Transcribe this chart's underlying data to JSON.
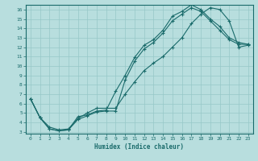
{
  "xlabel": "Humidex (Indice chaleur)",
  "xlim": [
    0,
    23
  ],
  "ylim": [
    3,
    16
  ],
  "xticks": [
    0,
    1,
    2,
    3,
    4,
    5,
    6,
    7,
    8,
    9,
    10,
    11,
    12,
    13,
    14,
    15,
    16,
    17,
    18,
    19,
    20,
    21,
    22,
    23
  ],
  "yticks": [
    3,
    4,
    5,
    6,
    7,
    8,
    9,
    10,
    11,
    12,
    13,
    14,
    15,
    16
  ],
  "bg_color": "#b8dede",
  "grid_color": "#96c8c8",
  "line_color": "#1a6b6b",
  "line1_x": [
    0,
    1,
    2,
    3,
    4,
    5,
    6,
    7,
    8,
    9,
    10,
    11,
    12,
    13,
    14,
    15,
    16,
    17,
    18,
    19,
    20,
    21,
    22,
    23
  ],
  "line1_y": [
    6.5,
    4.5,
    3.3,
    3.1,
    3.2,
    4.6,
    4.8,
    5.2,
    5.3,
    7.3,
    9.0,
    10.9,
    12.2,
    12.8,
    13.8,
    15.3,
    15.8,
    16.5,
    16.0,
    15.0,
    14.2,
    13.0,
    12.5,
    12.3
  ],
  "line2_x": [
    0,
    1,
    2,
    3,
    4,
    5,
    6,
    7,
    8,
    9,
    10,
    11,
    12,
    13,
    14,
    15,
    16,
    17,
    18,
    19,
    20,
    21,
    22,
    23
  ],
  "line2_y": [
    6.5,
    4.5,
    3.3,
    3.1,
    3.2,
    4.3,
    4.7,
    5.1,
    5.2,
    5.2,
    8.5,
    10.5,
    11.8,
    12.5,
    13.5,
    14.8,
    15.5,
    16.2,
    15.8,
    14.8,
    13.8,
    12.8,
    12.3,
    12.3
  ],
  "line3_x": [
    0,
    1,
    2,
    3,
    4,
    5,
    6,
    7,
    8,
    9,
    10,
    11,
    12,
    13,
    14,
    15,
    16,
    17,
    18,
    19,
    20,
    21,
    22,
    23
  ],
  "line3_y": [
    6.5,
    4.5,
    3.5,
    3.2,
    3.3,
    4.4,
    5.0,
    5.5,
    5.5,
    5.5,
    7.0,
    8.3,
    9.5,
    10.3,
    11.0,
    12.0,
    13.0,
    14.5,
    15.5,
    16.2,
    16.0,
    14.8,
    12.0,
    12.2
  ]
}
